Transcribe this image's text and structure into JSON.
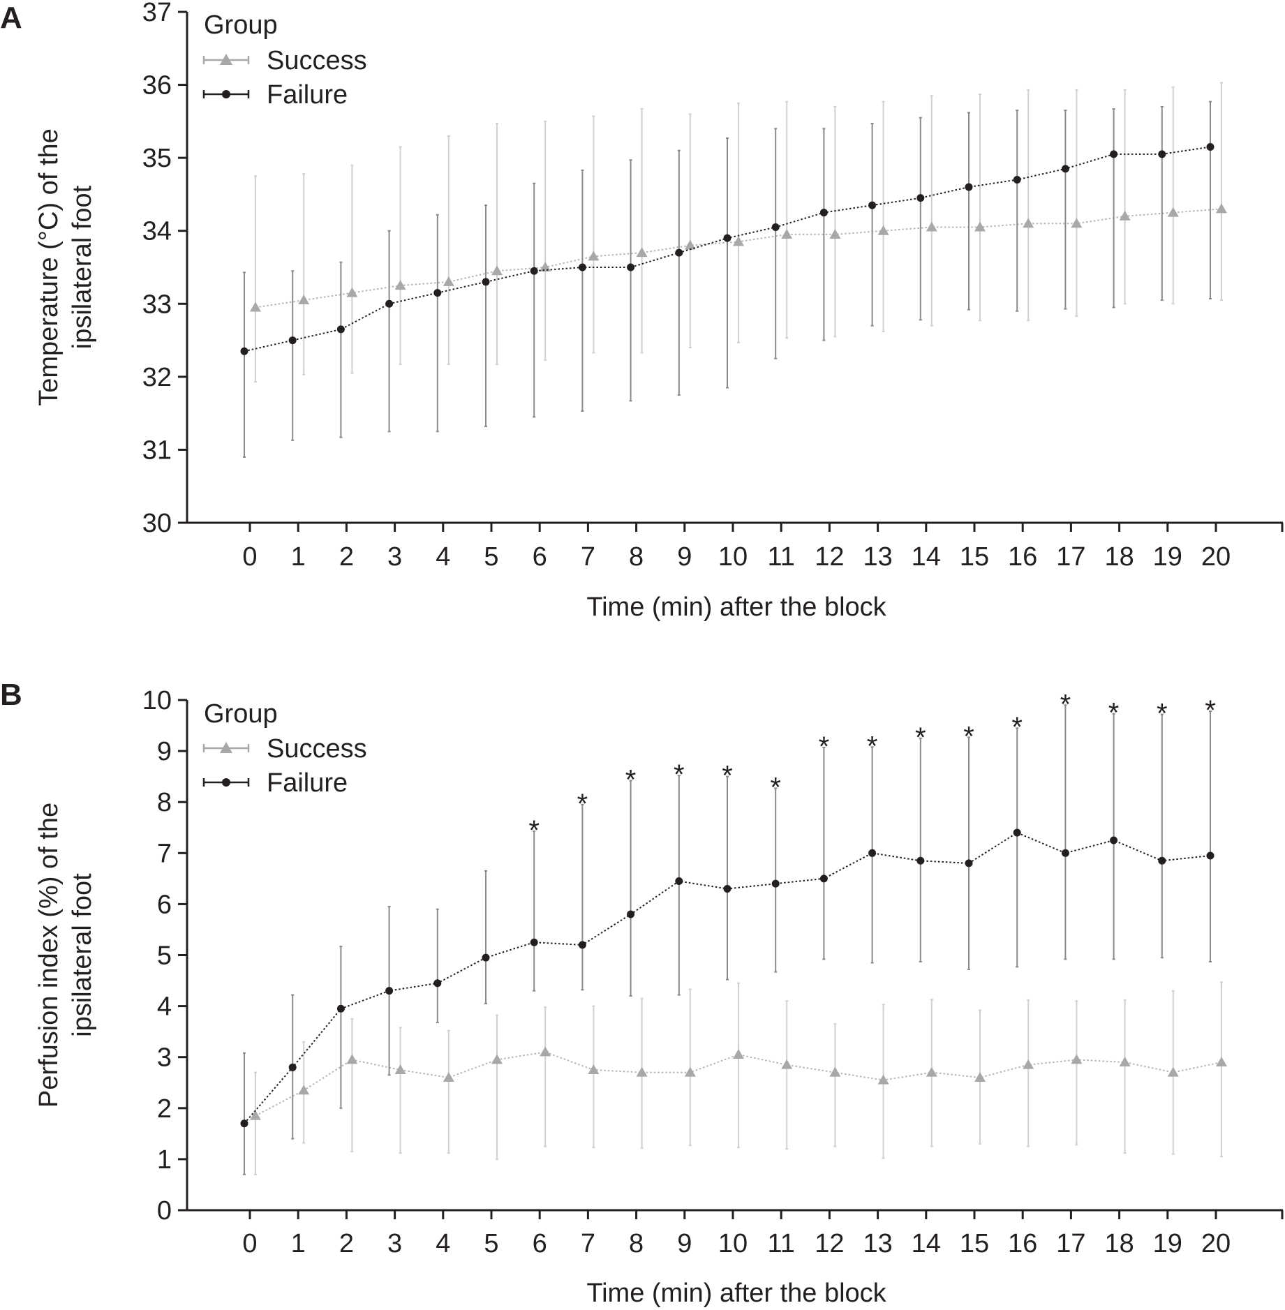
{
  "panels": [
    {
      "letter": "A",
      "chart_data": {
        "type": "line",
        "ylabel_lines": [
          "Temperature (°C) of the",
          "ipsilateral foot"
        ],
        "xlabel": "Time (min) after the block",
        "ylim": [
          30,
          37
        ],
        "yticks": [
          30,
          31,
          32,
          33,
          34,
          35,
          36,
          37
        ],
        "x": [
          0,
          1,
          2,
          3,
          4,
          5,
          6,
          7,
          8,
          9,
          10,
          11,
          12,
          13,
          14,
          15,
          16,
          17,
          18,
          19,
          20
        ],
        "legend": {
          "title": "Group",
          "position": "top-left"
        },
        "grid": false,
        "series": [
          {
            "name": "Success",
            "marker": "triangle",
            "color": "#a8a8a8",
            "values": [
              32.95,
              33.05,
              33.15,
              33.25,
              33.3,
              33.45,
              33.5,
              33.65,
              33.7,
              33.8,
              33.85,
              33.95,
              33.95,
              34.0,
              34.05,
              34.05,
              34.1,
              34.1,
              34.2,
              34.25,
              34.3
            ],
            "upper": [
              34.75,
              34.78,
              34.9,
              35.15,
              35.3,
              35.47,
              35.5,
              35.57,
              35.67,
              35.6,
              35.75,
              35.77,
              35.7,
              35.77,
              35.85,
              35.87,
              35.93,
              35.93,
              35.93,
              35.97,
              36.03
            ],
            "lower": [
              31.93,
              32.03,
              32.05,
              32.17,
              32.17,
              32.17,
              32.23,
              32.33,
              32.33,
              32.4,
              32.47,
              32.53,
              32.55,
              32.62,
              32.7,
              32.77,
              32.77,
              32.83,
              33.0,
              33.0,
              33.05
            ],
            "stars": []
          },
          {
            "name": "Failure",
            "marker": "circle",
            "color": "#231f20",
            "values": [
              32.35,
              32.5,
              32.65,
              33.0,
              33.15,
              33.3,
              33.45,
              33.5,
              33.5,
              33.7,
              33.9,
              34.05,
              34.25,
              34.35,
              34.45,
              34.6,
              34.7,
              34.85,
              35.05,
              35.05,
              35.15
            ],
            "upper": [
              33.43,
              33.45,
              33.57,
              34.0,
              34.22,
              34.35,
              34.65,
              34.83,
              34.97,
              35.1,
              35.27,
              35.4,
              35.4,
              35.47,
              35.55,
              35.62,
              35.65,
              35.65,
              35.67,
              35.7,
              35.77
            ],
            "lower": [
              30.9,
              31.13,
              31.17,
              31.25,
              31.25,
              31.32,
              31.45,
              31.53,
              31.67,
              31.75,
              31.85,
              32.25,
              32.5,
              32.7,
              32.78,
              32.92,
              32.9,
              32.93,
              32.95,
              33.05,
              33.07
            ],
            "stars": []
          }
        ]
      }
    },
    {
      "letter": "B",
      "chart_data": {
        "type": "line",
        "ylabel_lines": [
          "Perfusion index (%) of the",
          "ipsilateral foot"
        ],
        "xlabel": "Time (min) after the block",
        "ylim": [
          0,
          10
        ],
        "yticks": [
          0,
          1,
          2,
          3,
          4,
          5,
          6,
          7,
          8,
          9,
          10
        ],
        "x": [
          0,
          1,
          2,
          3,
          4,
          5,
          6,
          7,
          8,
          9,
          10,
          11,
          12,
          13,
          14,
          15,
          16,
          17,
          18,
          19,
          20
        ],
        "legend": {
          "title": "Group",
          "position": "top-left"
        },
        "grid": false,
        "significance_marker": "*",
        "significant_x": [
          6,
          7,
          8,
          9,
          10,
          11,
          12,
          13,
          14,
          15,
          16,
          17,
          18,
          19,
          20
        ],
        "series": [
          {
            "name": "Success",
            "marker": "triangle",
            "color": "#a8a8a8",
            "values": [
              1.85,
              2.35,
              2.95,
              2.75,
              2.6,
              2.95,
              3.1,
              2.75,
              2.7,
              2.7,
              3.05,
              2.85,
              2.7,
              2.55,
              2.7,
              2.6,
              2.85,
              2.95,
              2.9,
              2.7,
              2.9
            ],
            "upper": [
              2.7,
              3.3,
              3.75,
              3.58,
              3.52,
              3.82,
              3.98,
              4.0,
              4.15,
              4.33,
              4.45,
              4.1,
              3.65,
              4.03,
              4.13,
              3.92,
              4.12,
              4.1,
              4.12,
              4.3,
              4.47
            ],
            "lower": [
              0.7,
              1.32,
              1.15,
              1.12,
              1.12,
              1.0,
              1.25,
              1.23,
              1.22,
              1.27,
              1.23,
              1.2,
              1.25,
              1.02,
              1.25,
              1.3,
              1.25,
              1.28,
              1.12,
              1.1,
              1.05
            ]
          },
          {
            "name": "Failure",
            "marker": "circle",
            "color": "#231f20",
            "values": [
              1.7,
              2.8,
              3.95,
              4.3,
              4.45,
              4.95,
              5.25,
              5.2,
              5.8,
              6.45,
              6.3,
              6.4,
              6.5,
              7.0,
              6.85,
              6.8,
              7.4,
              7.0,
              7.25,
              6.85,
              6.95
            ],
            "upper": [
              3.08,
              4.22,
              5.17,
              5.95,
              5.9,
              6.65,
              7.43,
              7.95,
              8.42,
              8.52,
              8.5,
              8.27,
              9.07,
              9.08,
              9.25,
              9.27,
              9.45,
              9.9,
              9.73,
              9.72,
              9.78
            ],
            "lower": [
              0.7,
              1.4,
              2.0,
              2.65,
              3.68,
              4.05,
              4.3,
              4.32,
              4.2,
              4.22,
              4.52,
              4.67,
              4.92,
              4.85,
              4.87,
              4.72,
              4.77,
              4.92,
              4.92,
              4.95,
              4.87
            ]
          }
        ]
      }
    }
  ]
}
